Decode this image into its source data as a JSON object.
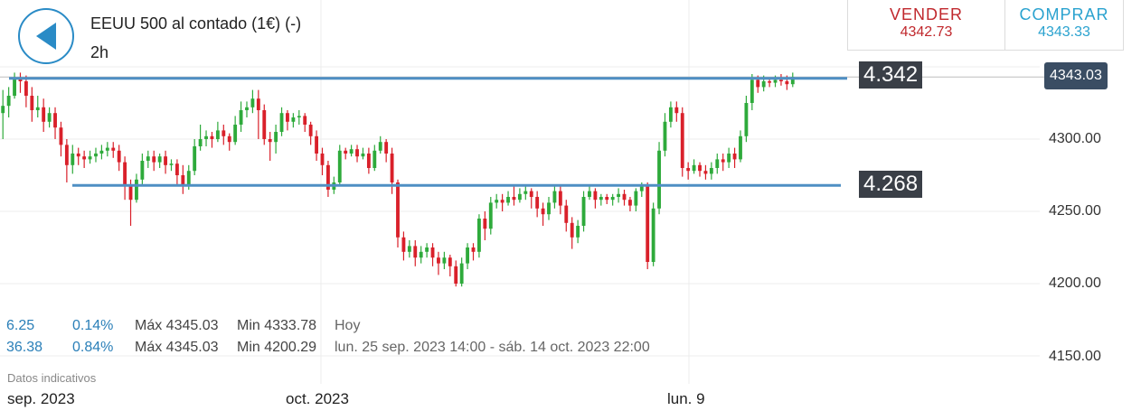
{
  "header": {
    "title": "EEUU 500 al contado (1€) (-)",
    "timeframe": "2h"
  },
  "trade": {
    "sell_label": "VENDER",
    "sell_price": "4342.73",
    "buy_label": "COMPRAR",
    "buy_price": "4343.33"
  },
  "chart": {
    "current_price": "4343.03",
    "level_high": "4.342",
    "level_low": "4.268",
    "level_high_value": 4342,
    "level_low_value": 4268,
    "y_ticks": [
      "4300.00",
      "4250.00",
      "4200.00",
      "4150.00"
    ],
    "x_ticks": [
      "sep. 2023",
      "oct. 2023",
      "lun. 9"
    ],
    "colors": {
      "up": "#2eaa3b",
      "down": "#d9202a",
      "level_line": "#4f8fc4"
    }
  },
  "chart_data": {
    "type": "candlestick",
    "ylim": [
      4130,
      4370
    ],
    "y_ticks": [
      4150,
      4200,
      4250,
      4300
    ],
    "candles": [
      [
        4318,
        4323,
        4300,
        4334
      ],
      [
        4323,
        4330,
        4315,
        4336
      ],
      [
        4330,
        4342,
        4328,
        4346
      ],
      [
        4342,
        4340,
        4332,
        4346
      ],
      [
        4340,
        4330,
        4322,
        4344
      ],
      [
        4330,
        4320,
        4312,
        4336
      ],
      [
        4320,
        4322,
        4315,
        4330
      ],
      [
        4322,
        4312,
        4305,
        4328
      ],
      [
        4312,
        4318,
        4308,
        4322
      ],
      [
        4318,
        4308,
        4300,
        4322
      ],
      [
        4308,
        4296,
        4288,
        4312
      ],
      [
        4296,
        4282,
        4270,
        4300
      ],
      [
        4282,
        4290,
        4276,
        4296
      ],
      [
        4290,
        4288,
        4282,
        4294
      ],
      [
        4288,
        4286,
        4280,
        4292
      ],
      [
        4286,
        4288,
        4283,
        4292
      ],
      [
        4288,
        4290,
        4284,
        4294
      ],
      [
        4290,
        4292,
        4286,
        4296
      ],
      [
        4292,
        4294,
        4288,
        4298
      ],
      [
        4294,
        4292,
        4287,
        4298
      ],
      [
        4292,
        4284,
        4278,
        4296
      ],
      [
        4284,
        4268,
        4258,
        4288
      ],
      [
        4268,
        4258,
        4240,
        4272
      ],
      [
        4258,
        4272,
        4256,
        4276
      ],
      [
        4272,
        4285,
        4268,
        4290
      ],
      [
        4285,
        4288,
        4280,
        4292
      ],
      [
        4288,
        4284,
        4278,
        4292
      ],
      [
        4284,
        4288,
        4280,
        4290
      ],
      [
        4288,
        4282,
        4276,
        4292
      ],
      [
        4282,
        4283,
        4278,
        4286
      ],
      [
        4283,
        4275,
        4268,
        4286
      ],
      [
        4275,
        4268,
        4262,
        4282
      ],
      [
        4268,
        4278,
        4265,
        4282
      ],
      [
        4278,
        4295,
        4275,
        4300
      ],
      [
        4295,
        4300,
        4292,
        4310
      ],
      [
        4300,
        4302,
        4295,
        4306
      ],
      [
        4302,
        4300,
        4294,
        4305
      ],
      [
        4300,
        4306,
        4298,
        4312
      ],
      [
        4306,
        4302,
        4296,
        4310
      ],
      [
        4302,
        4298,
        4292,
        4304
      ],
      [
        4298,
        4310,
        4296,
        4316
      ],
      [
        4310,
        4320,
        4305,
        4326
      ],
      [
        4320,
        4322,
        4315,
        4326
      ],
      [
        4322,
        4328,
        4318,
        4334
      ],
      [
        4328,
        4320,
        4300,
        4334
      ],
      [
        4320,
        4300,
        4296,
        4324
      ],
      [
        4300,
        4298,
        4285,
        4305
      ],
      [
        4298,
        4305,
        4290,
        4310
      ],
      [
        4305,
        4318,
        4302,
        4322
      ],
      [
        4318,
        4312,
        4306,
        4320
      ],
      [
        4312,
        4315,
        4308,
        4318
      ],
      [
        4315,
        4316,
        4310,
        4320
      ],
      [
        4316,
        4310,
        4305,
        4318
      ],
      [
        4310,
        4302,
        4296,
        4312
      ],
      [
        4302,
        4290,
        4285,
        4306
      ],
      [
        4290,
        4282,
        4275,
        4294
      ],
      [
        4282,
        4265,
        4260,
        4285
      ],
      [
        4265,
        4270,
        4262,
        4274
      ],
      [
        4270,
        4292,
        4268,
        4296
      ],
      [
        4292,
        4290,
        4286,
        4294
      ],
      [
        4290,
        4293,
        4288,
        4296
      ],
      [
        4293,
        4288,
        4284,
        4296
      ],
      [
        4288,
        4290,
        4286,
        4294
      ],
      [
        4290,
        4280,
        4276,
        4294
      ],
      [
        4280,
        4292,
        4278,
        4296
      ],
      [
        4292,
        4298,
        4290,
        4302
      ],
      [
        4298,
        4290,
        4284,
        4300
      ],
      [
        4290,
        4270,
        4262,
        4294
      ],
      [
        4270,
        4232,
        4225,
        4272
      ],
      [
        4232,
        4222,
        4216,
        4236
      ],
      [
        4222,
        4226,
        4218,
        4230
      ],
      [
        4226,
        4218,
        4212,
        4230
      ],
      [
        4218,
        4222,
        4214,
        4226
      ],
      [
        4222,
        4225,
        4218,
        4228
      ],
      [
        4225,
        4218,
        4212,
        4228
      ],
      [
        4218,
        4214,
        4206,
        4222
      ],
      [
        4214,
        4218,
        4210,
        4222
      ],
      [
        4218,
        4212,
        4205,
        4220
      ],
      [
        4212,
        4200,
        4198,
        4216
      ],
      [
        4200,
        4214,
        4198,
        4218
      ],
      [
        4214,
        4225,
        4210,
        4228
      ],
      [
        4225,
        4222,
        4216,
        4228
      ],
      [
        4222,
        4245,
        4218,
        4248
      ],
      [
        4245,
        4238,
        4230,
        4250
      ],
      [
        4238,
        4256,
        4234,
        4260
      ],
      [
        4256,
        4258,
        4252,
        4262
      ],
      [
        4258,
        4256,
        4250,
        4262
      ],
      [
        4256,
        4260,
        4254,
        4264
      ],
      [
        4260,
        4258,
        4254,
        4268
      ],
      [
        4258,
        4262,
        4256,
        4266
      ],
      [
        4262,
        4264,
        4258,
        4268
      ],
      [
        4264,
        4260,
        4252,
        4266
      ],
      [
        4260,
        4252,
        4246,
        4264
      ],
      [
        4252,
        4248,
        4240,
        4256
      ],
      [
        4248,
        4256,
        4244,
        4260
      ],
      [
        4256,
        4264,
        4252,
        4268
      ],
      [
        4264,
        4254,
        4248,
        4268
      ],
      [
        4254,
        4242,
        4236,
        4258
      ],
      [
        4242,
        4232,
        4224,
        4246
      ],
      [
        4232,
        4240,
        4228,
        4244
      ],
      [
        4240,
        4260,
        4236,
        4264
      ],
      [
        4260,
        4264,
        4258,
        4268
      ],
      [
        4264,
        4258,
        4252,
        4266
      ],
      [
        4258,
        4260,
        4254,
        4262
      ],
      [
        4260,
        4258,
        4255,
        4262
      ],
      [
        4258,
        4260,
        4254,
        4262
      ],
      [
        4260,
        4262,
        4256,
        4266
      ],
      [
        4262,
        4258,
        4254,
        4265
      ],
      [
        4258,
        4254,
        4250,
        4260
      ],
      [
        4254,
        4264,
        4250,
        4266
      ],
      [
        4264,
        4268,
        4260,
        4270
      ],
      [
        4268,
        4215,
        4210,
        4270
      ],
      [
        4215,
        4252,
        4212,
        4256
      ],
      [
        4252,
        4292,
        4248,
        4298
      ],
      [
        4292,
        4312,
        4288,
        4318
      ],
      [
        4312,
        4322,
        4308,
        4326
      ],
      [
        4322,
        4318,
        4312,
        4326
      ],
      [
        4318,
        4280,
        4274,
        4322
      ],
      [
        4280,
        4278,
        4272,
        4284
      ],
      [
        4278,
        4282,
        4276,
        4286
      ],
      [
        4282,
        4278,
        4274,
        4284
      ],
      [
        4278,
        4276,
        4272,
        4282
      ],
      [
        4276,
        4280,
        4272,
        4284
      ],
      [
        4280,
        4286,
        4276,
        4290
      ],
      [
        4286,
        4284,
        4278,
        4290
      ],
      [
        4284,
        4290,
        4280,
        4294
      ],
      [
        4290,
        4286,
        4280,
        4294
      ],
      [
        4286,
        4302,
        4284,
        4306
      ],
      [
        4302,
        4325,
        4298,
        4330
      ],
      [
        4325,
        4341,
        4320,
        4345
      ],
      [
        4341,
        4336,
        4332,
        4344
      ],
      [
        4336,
        4340,
        4333,
        4344
      ],
      [
        4340,
        4339,
        4336,
        4342
      ],
      [
        4339,
        4341,
        4336,
        4344
      ],
      [
        4341,
        4340,
        4337,
        4345
      ],
      [
        4340,
        4338,
        4334,
        4344
      ],
      [
        4338,
        4343,
        4336,
        4346
      ]
    ]
  },
  "stats": [
    {
      "change": "6.25",
      "pct": "0.14%",
      "max": "Máx 4345.03",
      "min": "Min 4333.78",
      "range": "Hoy"
    },
    {
      "change": "36.38",
      "pct": "0.84%",
      "max": "Máx 4345.03",
      "min": "Min 4200.29",
      "range": "lun. 25 sep. 2023 14:00 - sáb. 14 oct. 2023 22:00"
    }
  ],
  "footer": {
    "note": "Datos indicativos"
  },
  "icons": {
    "back": "back-arrow-icon"
  }
}
